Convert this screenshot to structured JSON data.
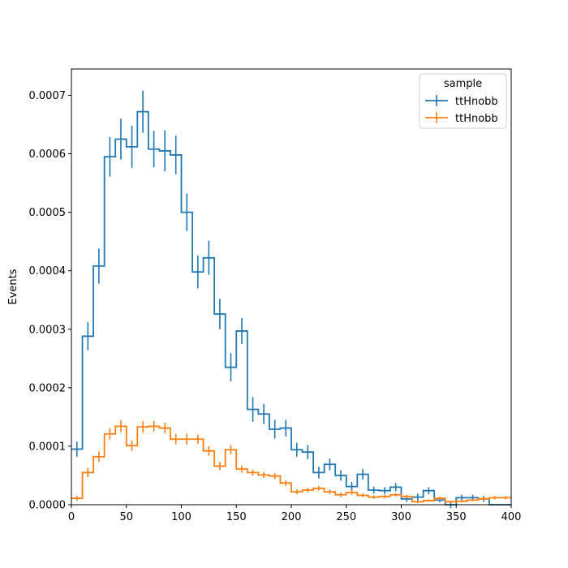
{
  "chart_data": {
    "type": "step",
    "xlabel": "",
    "ylabel": "Events",
    "xlim": [
      0,
      400
    ],
    "ylim": [
      0,
      0.000745
    ],
    "grid": false,
    "bin_width": 10,
    "x_edges": [
      0,
      10,
      20,
      30,
      40,
      50,
      60,
      70,
      80,
      90,
      100,
      110,
      120,
      130,
      140,
      150,
      160,
      170,
      180,
      190,
      200,
      210,
      220,
      230,
      240,
      250,
      260,
      270,
      280,
      290,
      300,
      310,
      320,
      330,
      340,
      350,
      360,
      370,
      380,
      390,
      400
    ],
    "x_ticks": [
      0,
      50,
      100,
      150,
      200,
      250,
      300,
      350,
      400
    ],
    "x_tick_labels": [
      "0",
      "50",
      "100",
      "150",
      "200",
      "250",
      "300",
      "350",
      "400"
    ],
    "y_ticks": [
      0,
      0.0001,
      0.0002,
      0.0003,
      0.0004,
      0.0005,
      0.0006,
      0.0007
    ],
    "y_tick_labels": [
      "0.0000",
      "0.0001",
      "0.0002",
      "0.0003",
      "0.0004",
      "0.0005",
      "0.0006",
      "0.0007"
    ],
    "legend": {
      "title": "sample",
      "position": "top-right"
    },
    "series": [
      {
        "name": "ttHnobb",
        "color": "#1f77b4",
        "values": [
          9.5e-05,
          0.000288,
          0.000408,
          0.000595,
          0.000625,
          0.000612,
          0.000672,
          0.000608,
          0.000605,
          0.000598,
          0.0005,
          0.000398,
          0.000422,
          0.000326,
          0.000235,
          0.000297,
          0.000163,
          0.000155,
          0.000129,
          0.000131,
          9.4e-05,
          9e-05,
          5.5e-05,
          6.9e-05,
          5e-05,
          3.1e-05,
          5.2e-05,
          2.5e-05,
          2.4e-05,
          3e-05,
          1e-05,
          1.3e-05,
          2.4e-05,
          8e-06,
          0.0,
          1.2e-05,
          1.2e-05,
          1e-05,
          0.0,
          0.0
        ],
        "errors": [
          1.3e-05,
          2.4e-05,
          3e-05,
          3.4e-05,
          3.5e-05,
          3.6e-05,
          3.6e-05,
          3.1e-05,
          3.5e-05,
          3.3e-05,
          3.2e-05,
          2.8e-05,
          2.9e-05,
          2.6e-05,
          2.4e-05,
          2.2e-05,
          2.1e-05,
          1.7e-05,
          1.6e-05,
          1.4e-05,
          1.2e-05,
          1.2e-05,
          1e-05,
          1e-05,
          9e-06,
          8e-06,
          9e-06,
          6e-06,
          6e-06,
          7e-06,
          5e-06,
          6e-06,
          6e-06,
          4e-06,
          6e-06,
          5e-06,
          5e-06,
          5e-06,
          0.0,
          0.0
        ]
      },
      {
        "name": "ttHnobb",
        "color": "#ff7f0e",
        "values": [
          1.1e-05,
          5.5e-05,
          8.2e-05,
          0.000121,
          0.000134,
          0.000101,
          0.000133,
          0.000134,
          0.000131,
          0.000112,
          0.000112,
          0.000112,
          9.2e-05,
          6.6e-05,
          9.4e-05,
          6.1e-05,
          5.5e-05,
          5.1e-05,
          4.9e-05,
          3.7e-05,
          2.2e-05,
          2.5e-05,
          2.8e-05,
          2.2e-05,
          1.7e-05,
          2.1e-05,
          1.6e-05,
          1.3e-05,
          1.4e-05,
          1.7e-05,
          1.4e-05,
          5e-06,
          7e-06,
          1.1e-05,
          5e-06,
          6e-06,
          8e-06,
          1e-05,
          1.2e-05,
          1.2e-05
        ],
        "errors": [
          4e-06,
          8e-06,
          9e-06,
          1e-05,
          1e-05,
          9e-06,
          1e-05,
          9e-06,
          9e-06,
          9e-06,
          9e-06,
          8e-06,
          8e-06,
          7e-06,
          8e-06,
          6e-06,
          5e-06,
          5e-06,
          5e-06,
          5e-06,
          4e-06,
          4e-06,
          4e-06,
          4e-06,
          4e-06,
          4e-06,
          3e-06,
          3e-06,
          3e-06,
          3e-06,
          3e-06,
          2e-06,
          2e-06,
          3e-06,
          2e-06,
          2e-06,
          2e-06,
          3e-06,
          3e-06,
          3e-06
        ]
      }
    ]
  }
}
